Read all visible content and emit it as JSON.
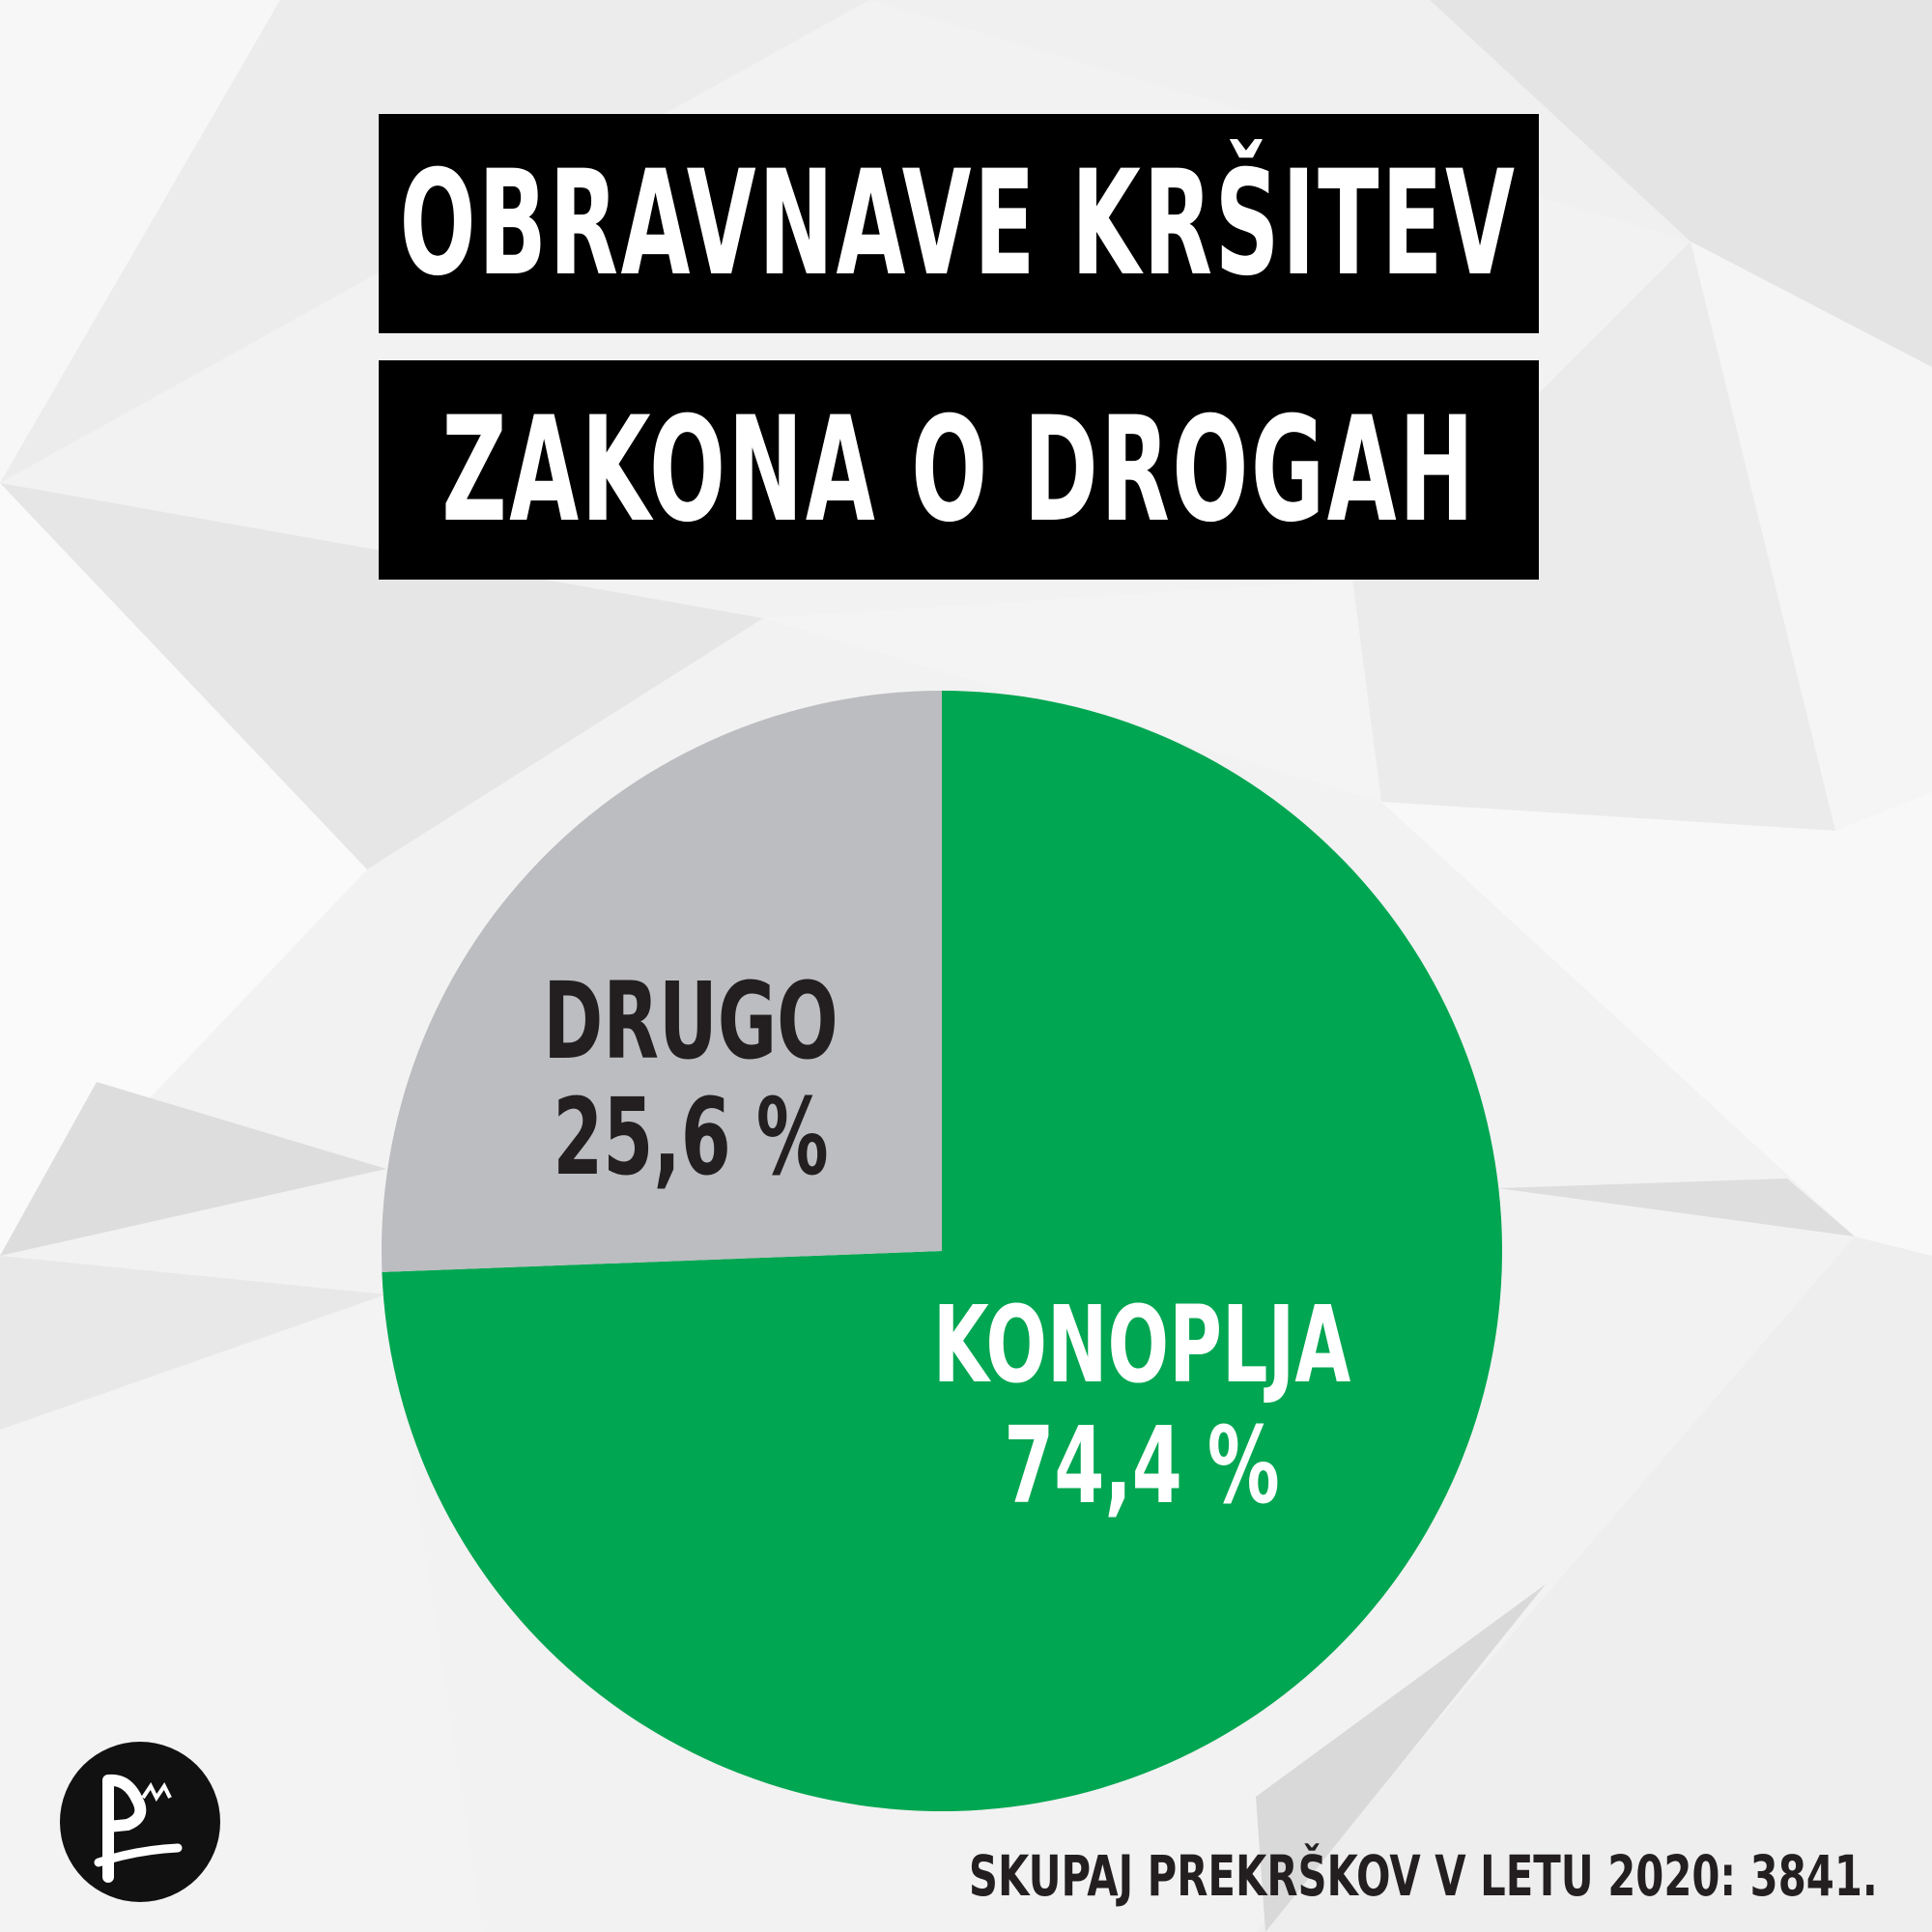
{
  "title_lines": [
    "OBRAVNAVE KRŠITEV",
    "ZAKONA O DROGAH"
  ],
  "chart_data": {
    "type": "pie",
    "title": "OBRAVNAVE KRŠITEV ZAKONA O DROGAH",
    "slices": [
      {
        "label": "KONOPLJA",
        "value": 74.4,
        "value_text": "74,4 %",
        "color": "#00a651",
        "text_color": "#ffffff"
      },
      {
        "label": "DRUGO",
        "value": 25.6,
        "value_text": "25,6 %",
        "color": "#bcbdc0",
        "text_color": "#231f20"
      }
    ],
    "start": "12 o'clock",
    "direction": "clockwise"
  },
  "footer": "SKUPAJ PREKRŠKOV V LETU 2020: 3841.",
  "logo": {
    "icon": "pirate-party-logo-icon",
    "color": "#111111"
  },
  "colors": {
    "title_bg": "#000000",
    "title_text": "#ffffff",
    "background": "#f2f2f2"
  }
}
